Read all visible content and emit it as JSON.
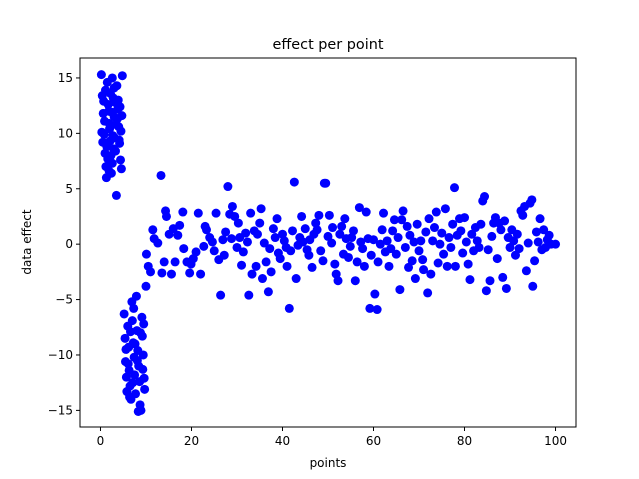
{
  "chart_data": {
    "type": "scatter",
    "title": "effect per point",
    "xlabel": "points",
    "ylabel": "data effect",
    "xlim": [
      -4.5,
      104.5
    ],
    "ylim": [
      -16.5,
      16.8
    ],
    "xticks": [
      0,
      20,
      40,
      60,
      80,
      100
    ],
    "yticks": [
      -15,
      -10,
      -5,
      0,
      5,
      10,
      15
    ],
    "grid": false,
    "legend": "none",
    "marker_color": "#0000ff",
    "series": [
      {
        "name": "effect",
        "points": [
          [
            0.2,
            15.3
          ],
          [
            0.4,
            13.4
          ],
          [
            0.6,
            11.8
          ],
          [
            0.8,
            9.9
          ],
          [
            1.0,
            8.2
          ],
          [
            1.2,
            7.0
          ],
          [
            1.3,
            6.0
          ],
          [
            1.5,
            14.6
          ],
          [
            1.7,
            12.6
          ],
          [
            1.9,
            10.9
          ],
          [
            2.1,
            9.3
          ],
          [
            2.3,
            8.0
          ],
          [
            2.4,
            6.4
          ],
          [
            2.6,
            15.0
          ],
          [
            2.8,
            13.2
          ],
          [
            3.0,
            11.5
          ],
          [
            3.1,
            9.6
          ],
          [
            3.3,
            8.4
          ],
          [
            3.5,
            4.4
          ],
          [
            3.6,
            14.3
          ],
          [
            3.8,
            12.2
          ],
          [
            4.0,
            10.6
          ],
          [
            4.2,
            9.1
          ],
          [
            4.4,
            7.6
          ],
          [
            4.6,
            6.8
          ],
          [
            4.8,
            15.2
          ],
          [
            0.3,
            10.1
          ],
          [
            0.5,
            9.2
          ],
          [
            0.7,
            12.9
          ],
          [
            0.9,
            11.1
          ],
          [
            1.1,
            13.9
          ],
          [
            1.4,
            8.8
          ],
          [
            1.6,
            7.7
          ],
          [
            1.8,
            12.0
          ],
          [
            2.0,
            10.4
          ],
          [
            2.2,
            13.6
          ],
          [
            2.5,
            11.9
          ],
          [
            2.7,
            9.8
          ],
          [
            2.9,
            8.6
          ],
          [
            3.2,
            12.8
          ],
          [
            3.4,
            10.8
          ],
          [
            3.7,
            11.3
          ],
          [
            3.9,
            13.0
          ],
          [
            4.1,
            9.4
          ],
          [
            4.3,
            12.4
          ],
          [
            4.5,
            10.2
          ],
          [
            4.7,
            11.6
          ],
          [
            2.6,
            7.3
          ],
          [
            3.0,
            14.1
          ],
          [
            1.9,
            6.6
          ],
          [
            5.2,
            -6.3
          ],
          [
            5.4,
            -8.5
          ],
          [
            5.5,
            -10.6
          ],
          [
            5.7,
            -12.0
          ],
          [
            5.8,
            -13.3
          ],
          [
            6.0,
            -7.4
          ],
          [
            6.2,
            -9.3
          ],
          [
            6.3,
            -11.4
          ],
          [
            6.5,
            -12.8
          ],
          [
            6.7,
            -14.0
          ],
          [
            6.9,
            -5.2
          ],
          [
            7.0,
            -6.9
          ],
          [
            7.2,
            -8.9
          ],
          [
            7.4,
            -10.2
          ],
          [
            7.5,
            -11.8
          ],
          [
            7.7,
            -13.5
          ],
          [
            7.9,
            -4.7
          ],
          [
            8.0,
            -7.8
          ],
          [
            8.2,
            -9.6
          ],
          [
            8.4,
            -11.0
          ],
          [
            8.6,
            -12.4
          ],
          [
            8.7,
            -14.5
          ],
          [
            8.9,
            -15.0
          ],
          [
            9.1,
            -6.6
          ],
          [
            9.2,
            -8.3
          ],
          [
            9.4,
            -10.0
          ],
          [
            9.6,
            -12.1
          ],
          [
            9.7,
            -13.1
          ],
          [
            8.3,
            -15.1
          ],
          [
            5.6,
            -9.5
          ],
          [
            6.1,
            -10.8
          ],
          [
            6.6,
            -7.9
          ],
          [
            7.1,
            -12.5
          ],
          [
            7.6,
            -9.0
          ],
          [
            8.1,
            -10.5
          ],
          [
            8.8,
            -8.0
          ],
          [
            9.3,
            -11.3
          ],
          [
            9.5,
            -7.2
          ],
          [
            6.4,
            -13.8
          ],
          [
            7.3,
            -5.8
          ],
          [
            10.0,
            -3.8
          ],
          [
            10.1,
            -0.9
          ],
          [
            10.5,
            -2.0
          ],
          [
            11.0,
            -2.5
          ],
          [
            11.5,
            1.3
          ],
          [
            11.8,
            0.5
          ],
          [
            12.6,
            0.1
          ],
          [
            13.3,
            6.2
          ],
          [
            13.5,
            -2.6
          ],
          [
            14.0,
            -1.6
          ],
          [
            14.3,
            3.0
          ],
          [
            14.5,
            2.5
          ],
          [
            15.1,
            0.9
          ],
          [
            15.6,
            -2.7
          ],
          [
            16.0,
            1.4
          ],
          [
            16.4,
            -1.6
          ],
          [
            17.0,
            0.8
          ],
          [
            17.4,
            1.7
          ],
          [
            18.1,
            2.9
          ],
          [
            18.3,
            -0.4
          ],
          [
            19.0,
            -1.6
          ],
          [
            19.6,
            -2.6
          ],
          [
            19.9,
            -1.8
          ],
          [
            20.4,
            -1.3
          ],
          [
            21.0,
            -0.7
          ],
          [
            21.5,
            2.8
          ],
          [
            22.0,
            -2.7
          ],
          [
            22.7,
            -0.2
          ],
          [
            23.0,
            1.6
          ],
          [
            23.3,
            1.3
          ],
          [
            24.0,
            0.6
          ],
          [
            24.6,
            0.2
          ],
          [
            25.0,
            -0.6
          ],
          [
            25.4,
            2.8
          ],
          [
            26.0,
            -1.4
          ],
          [
            26.4,
            -4.6
          ],
          [
            26.9,
            0.4
          ],
          [
            27.2,
            -1.0
          ],
          [
            27.5,
            1.1
          ],
          [
            28.0,
            5.2
          ],
          [
            28.4,
            2.7
          ],
          [
            28.8,
            0.5
          ],
          [
            29.0,
            3.4
          ],
          [
            29.5,
            2.5
          ],
          [
            30.0,
            -0.3
          ],
          [
            30.3,
            1.9
          ],
          [
            30.6,
            0.6
          ],
          [
            31.0,
            -1.9
          ],
          [
            31.4,
            -0.7
          ],
          [
            31.9,
            1.0
          ],
          [
            32.3,
            0.2
          ],
          [
            32.6,
            -4.6
          ],
          [
            33.0,
            2.8
          ],
          [
            33.3,
            -2.7
          ],
          [
            33.8,
            1.2
          ],
          [
            34.2,
            -2.0
          ],
          [
            34.5,
            0.9
          ],
          [
            35.0,
            1.9
          ],
          [
            35.3,
            3.2
          ],
          [
            35.6,
            -3.1
          ],
          [
            36.0,
            0.1
          ],
          [
            36.4,
            -1.6
          ],
          [
            36.9,
            -4.3
          ],
          [
            37.2,
            -0.4
          ],
          [
            37.5,
            -2.5
          ],
          [
            38.0,
            1.4
          ],
          [
            38.4,
            0.6
          ],
          [
            38.8,
            2.3
          ],
          [
            39.1,
            -0.8
          ],
          [
            39.5,
            -1.3
          ],
          [
            40.0,
            0.9
          ],
          [
            40.4,
            0.3
          ],
          [
            40.8,
            -0.3
          ],
          [
            41.0,
            -2.0
          ],
          [
            41.5,
            -5.8
          ],
          [
            41.8,
            -0.6
          ],
          [
            42.2,
            1.2
          ],
          [
            42.6,
            5.6
          ],
          [
            43.0,
            -3.1
          ],
          [
            43.4,
            -0.1
          ],
          [
            43.8,
            0.6
          ],
          [
            44.2,
            2.5
          ],
          [
            44.5,
            0.2
          ],
          [
            45.0,
            1.4
          ],
          [
            45.4,
            -0.5
          ],
          [
            45.8,
            -1.0
          ],
          [
            46.0,
            0.4
          ],
          [
            46.5,
            -2.1
          ],
          [
            46.9,
            0.9
          ],
          [
            47.3,
            1.9
          ],
          [
            47.6,
            1.3
          ],
          [
            48.0,
            2.6
          ],
          [
            48.4,
            -0.6
          ],
          [
            48.9,
            -1.5
          ],
          [
            49.2,
            5.5
          ],
          [
            49.5,
            5.5
          ],
          [
            50.0,
            0.7
          ],
          [
            50.3,
            2.6
          ],
          [
            50.8,
            0.1
          ],
          [
            51.0,
            1.5
          ],
          [
            51.5,
            -1.8
          ],
          [
            51.8,
            -2.7
          ],
          [
            52.2,
            -3.3
          ],
          [
            52.6,
            0.9
          ],
          [
            53.0,
            1.6
          ],
          [
            53.4,
            -0.9
          ],
          [
            53.7,
            2.3
          ],
          [
            54.0,
            0.5
          ],
          [
            54.5,
            -1.2
          ],
          [
            54.9,
            -0.2
          ],
          [
            55.2,
            0.6
          ],
          [
            55.6,
            1.2
          ],
          [
            56.0,
            -3.3
          ],
          [
            56.4,
            -1.6
          ],
          [
            56.9,
            3.3
          ],
          [
            57.2,
            0.2
          ],
          [
            57.6,
            -0.4
          ],
          [
            58.0,
            -2.0
          ],
          [
            58.4,
            2.9
          ],
          [
            58.8,
            0.5
          ],
          [
            59.2,
            -5.8
          ],
          [
            59.5,
            -1.0
          ],
          [
            60.0,
            0.4
          ],
          [
            60.3,
            -4.5
          ],
          [
            60.8,
            -5.9
          ],
          [
            61.0,
            -1.6
          ],
          [
            61.5,
            0.0
          ],
          [
            61.9,
            1.3
          ],
          [
            62.2,
            2.8
          ],
          [
            62.6,
            -0.7
          ],
          [
            63.0,
            0.3
          ],
          [
            63.4,
            -2.0
          ],
          [
            63.8,
            -0.4
          ],
          [
            64.2,
            1.2
          ],
          [
            64.6,
            2.2
          ],
          [
            65.0,
            -0.9
          ],
          [
            65.4,
            0.6
          ],
          [
            65.8,
            -4.1
          ],
          [
            66.2,
            2.2
          ],
          [
            66.5,
            3.0
          ],
          [
            67.0,
            -0.3
          ],
          [
            67.4,
            1.6
          ],
          [
            67.7,
            -2.1
          ],
          [
            68.0,
            0.8
          ],
          [
            68.5,
            -1.5
          ],
          [
            68.9,
            0.2
          ],
          [
            69.2,
            -3.1
          ],
          [
            69.6,
            1.8
          ],
          [
            70.0,
            -0.6
          ],
          [
            70.4,
            0.3
          ],
          [
            70.8,
            -1.4
          ],
          [
            71.0,
            -2.3
          ],
          [
            71.5,
            1.1
          ],
          [
            71.9,
            -4.4
          ],
          [
            72.2,
            2.3
          ],
          [
            72.6,
            -2.7
          ],
          [
            73.0,
            0.3
          ],
          [
            73.4,
            1.5
          ],
          [
            73.8,
            2.9
          ],
          [
            74.2,
            -1.7
          ],
          [
            74.6,
            0.0
          ],
          [
            75.0,
            1.0
          ],
          [
            75.4,
            -0.9
          ],
          [
            75.8,
            3.2
          ],
          [
            76.2,
            -2.0
          ],
          [
            76.6,
            0.6
          ],
          [
            77.0,
            -0.3
          ],
          [
            77.4,
            1.8
          ],
          [
            77.8,
            5.1
          ],
          [
            78.0,
            -2.0
          ],
          [
            78.4,
            0.8
          ],
          [
            78.9,
            2.3
          ],
          [
            79.2,
            1.2
          ],
          [
            79.6,
            -0.8
          ],
          [
            80.0,
            2.4
          ],
          [
            80.4,
            0.2
          ],
          [
            80.8,
            -1.8
          ],
          [
            81.2,
            -3.2
          ],
          [
            81.6,
            0.9
          ],
          [
            82.0,
            -0.6
          ],
          [
            82.4,
            1.5
          ],
          [
            82.8,
            0.3
          ],
          [
            83.2,
            -0.3
          ],
          [
            83.6,
            1.8
          ],
          [
            84.0,
            3.9
          ],
          [
            84.4,
            4.3
          ],
          [
            84.8,
            -4.2
          ],
          [
            85.2,
            -0.5
          ],
          [
            85.6,
            -3.3
          ],
          [
            86.0,
            0.7
          ],
          [
            86.4,
            1.9
          ],
          [
            86.8,
            2.4
          ],
          [
            87.2,
            -1.3
          ],
          [
            87.6,
            1.9
          ],
          [
            88.0,
            1.3
          ],
          [
            88.4,
            -3.0
          ],
          [
            88.8,
            2.1
          ],
          [
            89.2,
            -4.0
          ],
          [
            89.6,
            0.6
          ],
          [
            90.0,
            -0.3
          ],
          [
            90.4,
            1.3
          ],
          [
            90.8,
            0.3
          ],
          [
            91.2,
            -1.0
          ],
          [
            91.6,
            0.9
          ],
          [
            92.0,
            -0.4
          ],
          [
            92.4,
            3.0
          ],
          [
            92.8,
            2.6
          ],
          [
            93.2,
            3.4
          ],
          [
            93.6,
            -2.4
          ],
          [
            94.0,
            0.1
          ],
          [
            94.4,
            3.7
          ],
          [
            94.8,
            4.0
          ],
          [
            95.0,
            -3.8
          ],
          [
            95.4,
            -1.5
          ],
          [
            95.8,
            1.1
          ],
          [
            96.2,
            0.2
          ],
          [
            96.6,
            2.3
          ],
          [
            97.0,
            -0.5
          ],
          [
            97.4,
            1.3
          ],
          [
            97.8,
            -0.3
          ],
          [
            98.2,
            0.4
          ],
          [
            98.6,
            0.8
          ],
          [
            99.0,
            0.0
          ],
          [
            100.0,
            0.0
          ]
        ]
      }
    ]
  }
}
